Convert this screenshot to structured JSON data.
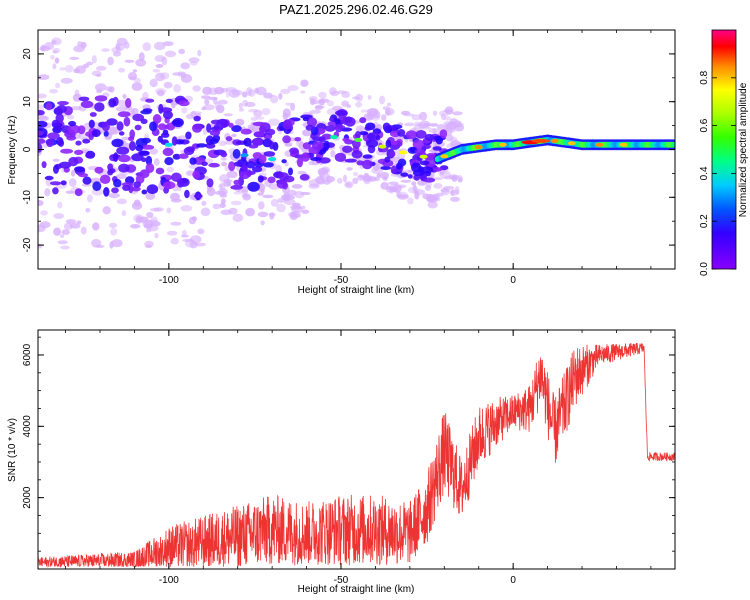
{
  "title": "PAZ1.2025.296.02.46.G29",
  "chart_data": [
    {
      "type": "heatmap",
      "xlabel": "Height of straight line (km)",
      "ylabel": "Frequency (Hz)",
      "xlim": [
        -138,
        47
      ],
      "ylim": [
        -25,
        25
      ],
      "x_ticks": [
        -100,
        -50,
        0
      ],
      "y_ticks": [
        -20,
        -10,
        0,
        10,
        20
      ],
      "colorbar": {
        "label": "Normalized spectral amplitude",
        "range": [
          0,
          1
        ],
        "ticks": [
          0.0,
          0.2,
          0.4,
          0.6,
          0.8
        ]
      },
      "ridge": [
        {
          "x": -138,
          "y": 1
        },
        {
          "x": -100,
          "y": 1
        },
        {
          "x": -70,
          "y": -2
        },
        {
          "x": -60,
          "y": 1
        },
        {
          "x": -50,
          "y": 3
        },
        {
          "x": -40,
          "y": 1
        },
        {
          "x": -30,
          "y": -1
        },
        {
          "x": -22,
          "y": -2
        },
        {
          "x": -15,
          "y": 0
        },
        {
          "x": -5,
          "y": 1
        },
        {
          "x": 0,
          "y": 1
        },
        {
          "x": 10,
          "y": 2
        },
        {
          "x": 20,
          "y": 1
        },
        {
          "x": 47,
          "y": 1
        }
      ]
    },
    {
      "type": "line",
      "xlabel": "Height of straight line (km)",
      "ylabel": "SNR (10 * v/v)",
      "xlim": [
        -138,
        47
      ],
      "ylim": [
        0,
        6700
      ],
      "x_ticks": [
        -100,
        -50,
        0
      ],
      "y_ticks": [
        2000,
        4000,
        6000
      ],
      "series": [
        {
          "color": "#ee3333",
          "envelope": [
            {
              "x": -138,
              "mean": 180,
              "amp": 150
            },
            {
              "x": -110,
              "mean": 250,
              "amp": 250
            },
            {
              "x": -100,
              "mean": 600,
              "amp": 600
            },
            {
              "x": -80,
              "mean": 900,
              "amp": 900
            },
            {
              "x": -70,
              "mean": 1100,
              "amp": 1000
            },
            {
              "x": -60,
              "mean": 1000,
              "amp": 900
            },
            {
              "x": -50,
              "mean": 1100,
              "amp": 1000
            },
            {
              "x": -40,
              "mean": 1100,
              "amp": 1000
            },
            {
              "x": -30,
              "mean": 1000,
              "amp": 900
            },
            {
              "x": -25,
              "mean": 1700,
              "amp": 1000
            },
            {
              "x": -20,
              "mean": 3300,
              "amp": 1200
            },
            {
              "x": -15,
              "mean": 2200,
              "amp": 900
            },
            {
              "x": -10,
              "mean": 3700,
              "amp": 900
            },
            {
              "x": -5,
              "mean": 4100,
              "amp": 700
            },
            {
              "x": 0,
              "mean": 4400,
              "amp": 500
            },
            {
              "x": 5,
              "mean": 4500,
              "amp": 700
            },
            {
              "x": 8,
              "mean": 5500,
              "amp": 900
            },
            {
              "x": 12,
              "mean": 3800,
              "amp": 1000
            },
            {
              "x": 18,
              "mean": 5400,
              "amp": 900
            },
            {
              "x": 25,
              "mean": 6000,
              "amp": 300
            },
            {
              "x": 38,
              "mean": 6200,
              "amp": 150
            },
            {
              "x": 39,
              "mean": 3150,
              "amp": 120
            },
            {
              "x": 47,
              "mean": 3150,
              "amp": 120
            }
          ]
        }
      ]
    }
  ]
}
